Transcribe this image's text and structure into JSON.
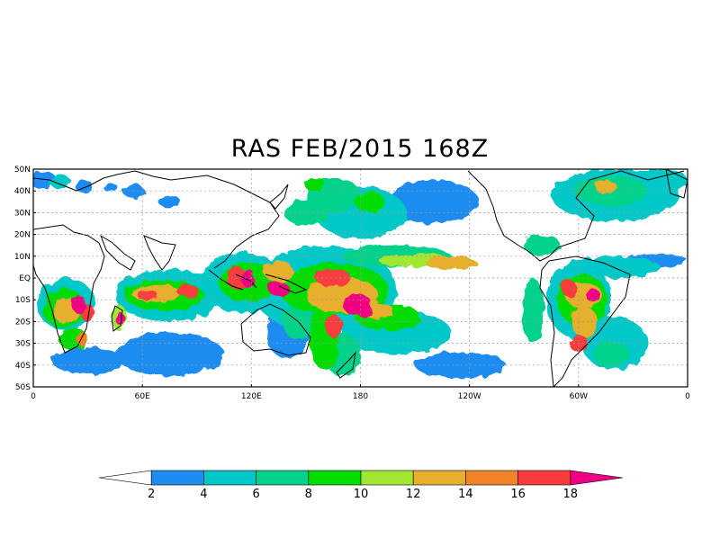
{
  "title": "RAS FEB/2015 168Z",
  "map": {
    "lat_labels": [
      "50N",
      "40N",
      "30N",
      "20N",
      "10N",
      "EQ",
      "10S",
      "20S",
      "30S",
      "40S",
      "50S"
    ],
    "lon_labels": [
      "0",
      "60E",
      "120E",
      "180",
      "120W",
      "60W",
      "0"
    ],
    "lat_range": [
      -50,
      50
    ],
    "lon_range": [
      0,
      360
    ],
    "gridlines": true,
    "projection": "equirectangular"
  },
  "colorbar": {
    "labels": [
      "2",
      "4",
      "6",
      "8",
      "10",
      "12",
      "14",
      "16",
      "18"
    ],
    "colors": [
      "#ffffff",
      "#1e8cf0",
      "#00c8c8",
      "#00d28c",
      "#00dc00",
      "#a0e632",
      "#e6af2d",
      "#f08228",
      "#fa3c3c",
      "#f00082"
    ]
  },
  "precip_field": [
    {
      "lon": 5,
      "lat": 45,
      "rx": 8,
      "ry": 4,
      "level": 1
    },
    {
      "lon": 15,
      "lat": 44,
      "rx": 6,
      "ry": 3,
      "level": 2
    },
    {
      "lon": 28,
      "lat": 42,
      "rx": 5,
      "ry": 3,
      "level": 1
    },
    {
      "lon": 42,
      "lat": 42,
      "rx": 4,
      "ry": 2,
      "level": 1
    },
    {
      "lon": 55,
      "lat": 40,
      "rx": 6,
      "ry": 3,
      "level": 1
    },
    {
      "lon": 75,
      "lat": 35,
      "rx": 6,
      "ry": 3,
      "level": 1
    },
    {
      "lon": 18,
      "lat": -12,
      "rx": 16,
      "ry": 12,
      "level": 2
    },
    {
      "lon": 17,
      "lat": -14,
      "rx": 12,
      "ry": 9,
      "level": 4
    },
    {
      "lon": 18,
      "lat": -15,
      "rx": 7,
      "ry": 6,
      "level": 6
    },
    {
      "lon": 25,
      "lat": -12,
      "rx": 4,
      "ry": 4,
      "level": 9
    },
    {
      "lon": 30,
      "lat": -16,
      "rx": 4,
      "ry": 4,
      "level": 8
    },
    {
      "lon": 22,
      "lat": -28,
      "rx": 8,
      "ry": 5,
      "level": 4
    },
    {
      "lon": 27,
      "lat": -28,
      "rx": 3,
      "ry": 3,
      "level": 7
    },
    {
      "lon": 30,
      "lat": -38,
      "rx": 20,
      "ry": 6,
      "level": 1
    },
    {
      "lon": 47,
      "lat": -18,
      "rx": 4,
      "ry": 6,
      "level": 5
    },
    {
      "lon": 48,
      "lat": -19,
      "rx": 2,
      "ry": 3,
      "level": 9
    },
    {
      "lon": 75,
      "lat": -8,
      "rx": 30,
      "ry": 12,
      "level": 2
    },
    {
      "lon": 72,
      "lat": -8,
      "rx": 22,
      "ry": 7,
      "level": 4
    },
    {
      "lon": 68,
      "lat": -7,
      "rx": 14,
      "ry": 4,
      "level": 6
    },
    {
      "lon": 63,
      "lat": -8,
      "rx": 6,
      "ry": 2,
      "level": 8
    },
    {
      "lon": 85,
      "lat": -6,
      "rx": 6,
      "ry": 3,
      "level": 8
    },
    {
      "lon": 75,
      "lat": -35,
      "rx": 30,
      "ry": 10,
      "level": 1
    },
    {
      "lon": 115,
      "lat": -2,
      "rx": 22,
      "ry": 14,
      "level": 2
    },
    {
      "lon": 118,
      "lat": -2,
      "rx": 16,
      "ry": 9,
      "level": 4
    },
    {
      "lon": 112,
      "lat": 0,
      "rx": 6,
      "ry": 5,
      "level": 8
    },
    {
      "lon": 118,
      "lat": 0,
      "rx": 4,
      "ry": 4,
      "level": 9
    },
    {
      "lon": 135,
      "lat": 3,
      "rx": 8,
      "ry": 5,
      "level": 6
    },
    {
      "lon": 135,
      "lat": -5,
      "rx": 6,
      "ry": 3,
      "level": 9
    },
    {
      "lon": 140,
      "lat": -25,
      "rx": 12,
      "ry": 12,
      "level": 1
    },
    {
      "lon": 145,
      "lat": -20,
      "rx": 8,
      "ry": 8,
      "level": 3
    },
    {
      "lon": 160,
      "lat": -5,
      "rx": 40,
      "ry": 20,
      "level": 2
    },
    {
      "lon": 165,
      "lat": -5,
      "rx": 30,
      "ry": 12,
      "level": 4
    },
    {
      "lon": 170,
      "lat": -8,
      "rx": 20,
      "ry": 8,
      "level": 6
    },
    {
      "lon": 165,
      "lat": 0,
      "rx": 10,
      "ry": 4,
      "level": 8
    },
    {
      "lon": 178,
      "lat": -12,
      "rx": 8,
      "ry": 5,
      "level": 9
    },
    {
      "lon": 182,
      "lat": -15,
      "rx": 4,
      "ry": 3,
      "level": 9
    },
    {
      "lon": 160,
      "lat": -28,
      "rx": 8,
      "ry": 14,
      "level": 4
    },
    {
      "lon": 165,
      "lat": -22,
      "rx": 5,
      "ry": 5,
      "level": 8
    },
    {
      "lon": 170,
      "lat": -35,
      "rx": 10,
      "ry": 10,
      "level": 3
    },
    {
      "lon": 200,
      "lat": -25,
      "rx": 30,
      "ry": 10,
      "level": 2
    },
    {
      "lon": 195,
      "lat": -18,
      "rx": 18,
      "ry": 6,
      "level": 4
    },
    {
      "lon": 190,
      "lat": -15,
      "rx": 8,
      "ry": 4,
      "level": 6
    },
    {
      "lon": 200,
      "lat": 10,
      "rx": 30,
      "ry": 5,
      "level": 3
    },
    {
      "lon": 210,
      "lat": 8,
      "rx": 20,
      "ry": 3,
      "level": 5
    },
    {
      "lon": 230,
      "lat": 7,
      "rx": 14,
      "ry": 3,
      "level": 6
    },
    {
      "lon": 180,
      "lat": 30,
      "rx": 25,
      "ry": 12,
      "level": 2
    },
    {
      "lon": 165,
      "lat": 38,
      "rx": 15,
      "ry": 8,
      "level": 3
    },
    {
      "lon": 150,
      "lat": 30,
      "rx": 12,
      "ry": 6,
      "level": 3
    },
    {
      "lon": 155,
      "lat": 43,
      "rx": 6,
      "ry": 3,
      "level": 4
    },
    {
      "lon": 185,
      "lat": 35,
      "rx": 8,
      "ry": 5,
      "level": 4
    },
    {
      "lon": 235,
      "lat": -40,
      "rx": 25,
      "ry": 6,
      "level": 1
    },
    {
      "lon": 275,
      "lat": -15,
      "rx": 6,
      "ry": 15,
      "level": 3
    },
    {
      "lon": 300,
      "lat": -10,
      "rx": 18,
      "ry": 18,
      "level": 2
    },
    {
      "lon": 302,
      "lat": -10,
      "rx": 14,
      "ry": 12,
      "level": 4
    },
    {
      "lon": 303,
      "lat": -8,
      "rx": 10,
      "ry": 6,
      "level": 6
    },
    {
      "lon": 308,
      "lat": -8,
      "rx": 4,
      "ry": 3,
      "level": 9
    },
    {
      "lon": 295,
      "lat": -5,
      "rx": 4,
      "ry": 4,
      "level": 8
    },
    {
      "lon": 303,
      "lat": -20,
      "rx": 7,
      "ry": 7,
      "level": 6
    },
    {
      "lon": 300,
      "lat": -30,
      "rx": 5,
      "ry": 4,
      "level": 8
    },
    {
      "lon": 320,
      "lat": -30,
      "rx": 18,
      "ry": 12,
      "level": 2
    },
    {
      "lon": 318,
      "lat": -35,
      "rx": 10,
      "ry": 6,
      "level": 3
    },
    {
      "lon": 280,
      "lat": 15,
      "rx": 10,
      "ry": 5,
      "level": 3
    },
    {
      "lon": 320,
      "lat": 5,
      "rx": 25,
      "ry": 5,
      "level": 2
    },
    {
      "lon": 340,
      "lat": 8,
      "rx": 20,
      "ry": 3,
      "level": 1
    },
    {
      "lon": 320,
      "lat": 38,
      "rx": 35,
      "ry": 12,
      "level": 2
    },
    {
      "lon": 318,
      "lat": 40,
      "rx": 20,
      "ry": 7,
      "level": 3
    },
    {
      "lon": 315,
      "lat": 42,
      "rx": 6,
      "ry": 3,
      "level": 6
    },
    {
      "lon": 220,
      "lat": 35,
      "rx": 25,
      "ry": 10,
      "level": 1
    },
    {
      "lon": 345,
      "lat": 45,
      "rx": 15,
      "ry": 5,
      "level": 2
    }
  ]
}
